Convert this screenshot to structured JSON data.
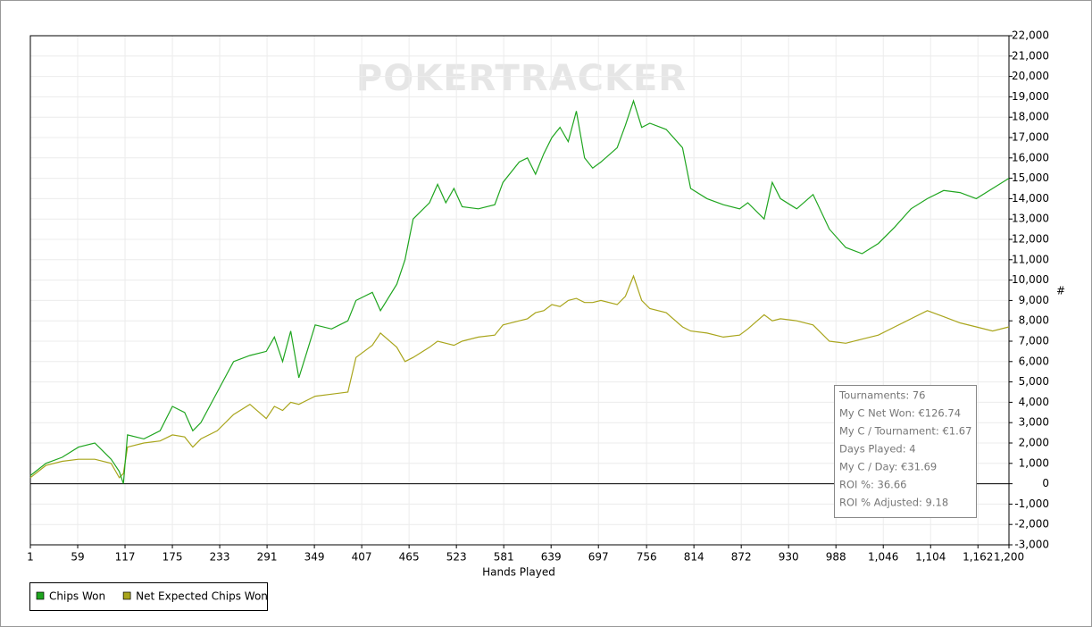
{
  "chart_data": {
    "type": "line",
    "watermark": "POKERTRACKER",
    "x_label": "Hands Played",
    "y_label": "#",
    "grid": true,
    "legend": "bottom-left",
    "xlim": [
      1,
      1200
    ],
    "xticks": [
      1,
      59,
      117,
      175,
      233,
      291,
      349,
      407,
      465,
      523,
      581,
      639,
      697,
      756,
      814,
      872,
      930,
      988,
      {
        "value": 1046,
        "label": "1,046"
      },
      {
        "value": 1104,
        "label": "1,104"
      },
      {
        "value": 1162,
        "label": "1,162"
      },
      {
        "value": 1200,
        "label": "1,200"
      }
    ],
    "ylim": [
      -3000,
      22000
    ],
    "yticks": [
      {
        "value": -3000,
        "label": "-3,000"
      },
      {
        "value": -2000,
        "label": "-2,000"
      },
      {
        "value": -1000,
        "label": "-1,000"
      },
      0,
      {
        "value": 1000,
        "label": "1,000"
      },
      {
        "value": 2000,
        "label": "2,000"
      },
      {
        "value": 3000,
        "label": "3,000"
      },
      {
        "value": 4000,
        "label": "4,000"
      },
      {
        "value": 5000,
        "label": "5,000"
      },
      {
        "value": 6000,
        "label": "6,000"
      },
      {
        "value": 7000,
        "label": "7,000"
      },
      {
        "value": 8000,
        "label": "8,000"
      },
      {
        "value": 9000,
        "label": "9,000"
      },
      {
        "value": 10000,
        "label": "10,000"
      },
      {
        "value": 11000,
        "label": "11,000"
      },
      {
        "value": 12000,
        "label": "12,000"
      },
      {
        "value": 13000,
        "label": "13,000"
      },
      {
        "value": 14000,
        "label": "14,000"
      },
      {
        "value": 15000,
        "label": "15,000"
      },
      {
        "value": 16000,
        "label": "16,000"
      },
      {
        "value": 17000,
        "label": "17,000"
      },
      {
        "value": 18000,
        "label": "18,000"
      },
      {
        "value": 19000,
        "label": "19,000"
      },
      {
        "value": 20000,
        "label": "20,000"
      },
      {
        "value": 21000,
        "label": "21,000"
      },
      {
        "value": 22000,
        "label": "22,000"
      }
    ],
    "x": [
      1,
      20,
      40,
      60,
      80,
      100,
      110,
      115,
      120,
      140,
      160,
      175,
      190,
      200,
      210,
      230,
      250,
      270,
      290,
      300,
      310,
      320,
      330,
      340,
      350,
      370,
      390,
      400,
      420,
      430,
      450,
      460,
      470,
      490,
      500,
      510,
      520,
      530,
      550,
      570,
      580,
      600,
      610,
      620,
      630,
      640,
      650,
      660,
      670,
      680,
      690,
      700,
      720,
      730,
      740,
      750,
      760,
      780,
      800,
      810,
      830,
      850,
      870,
      880,
      900,
      910,
      920,
      940,
      960,
      980,
      1000,
      1020,
      1040,
      1060,
      1080,
      1100,
      1120,
      1140,
      1160,
      1180,
      1200
    ],
    "series": [
      {
        "name": "Chips Won",
        "color": "#1fa51f",
        "values": [
          400,
          1000,
          1300,
          1800,
          2000,
          1200,
          600,
          0,
          2400,
          2200,
          2600,
          3800,
          3500,
          2600,
          3000,
          4500,
          6000,
          6300,
          6500,
          7200,
          6000,
          7500,
          5200,
          6500,
          7800,
          7600,
          8000,
          9000,
          9400,
          8500,
          9800,
          11000,
          13000,
          13800,
          14700,
          13800,
          14500,
          13600,
          13500,
          13700,
          14800,
          15800,
          16000,
          15200,
          16200,
          17000,
          17500,
          16800,
          18300,
          16000,
          15500,
          15800,
          16500,
          17600,
          18800,
          17500,
          17700,
          17400,
          16500,
          14500,
          14000,
          13700,
          13500,
          13800,
          13000,
          14800,
          14000,
          13500,
          14200,
          12500,
          11600,
          11300,
          11800,
          12600,
          13500,
          14000,
          14400,
          14300,
          14000,
          14500,
          15000
        ]
      },
      {
        "name": "Net Expected Chips Won",
        "color": "#a9a51c",
        "values": [
          300,
          900,
          1100,
          1200,
          1200,
          1000,
          300,
          500,
          1800,
          2000,
          2100,
          2400,
          2300,
          1800,
          2200,
          2600,
          3400,
          3900,
          3200,
          3800,
          3600,
          4000,
          3900,
          4100,
          4300,
          4400,
          4500,
          6200,
          6800,
          7400,
          6700,
          6000,
          6200,
          6700,
          7000,
          6900,
          6800,
          7000,
          7200,
          7300,
          7800,
          8000,
          8100,
          8400,
          8500,
          8800,
          8700,
          9000,
          9100,
          8900,
          8900,
          9000,
          8800,
          9200,
          10200,
          9000,
          8600,
          8400,
          7700,
          7500,
          7400,
          7200,
          7300,
          7600,
          8300,
          8000,
          8100,
          8000,
          7800,
          7000,
          6900,
          7100,
          7300,
          7700,
          8100,
          8500,
          8200,
          7900,
          7700,
          7500,
          7700
        ]
      }
    ],
    "stats": [
      "Tournaments: 76",
      "My C Net Won: €126.74",
      "My C / Tournament: €1.67",
      "Days Played: 4",
      "My C / Day: €31.69",
      "ROI %: 36.66",
      "ROI % Adjusted: 9.18"
    ]
  }
}
